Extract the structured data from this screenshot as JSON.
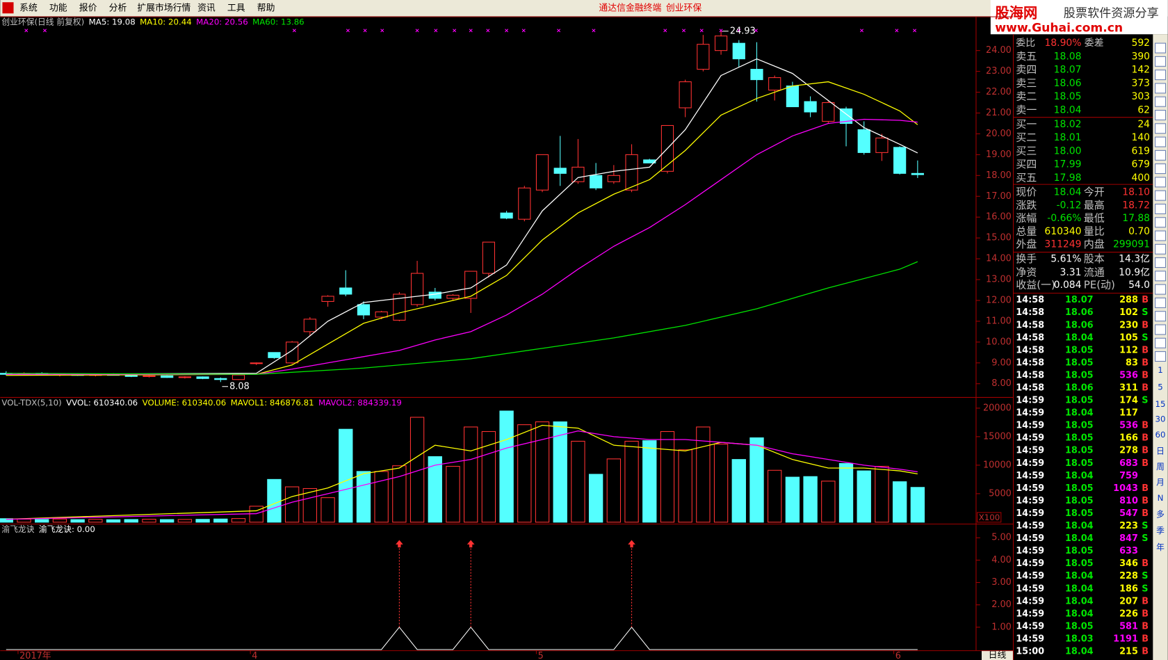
{
  "menu": [
    "系统",
    "功能",
    "报价",
    "分析",
    "扩展市场行情",
    "资讯",
    "工具",
    "帮助"
  ],
  "title_center": [
    "通达信金融终端",
    "创业环保"
  ],
  "logo": {
    "name": "股海网",
    "slogan": "股票软件资源分享",
    "url": "www.Guhai.com.cn"
  },
  "period": "日线",
  "chart_data": [
    {
      "type": "candlestick",
      "up_color": "#ff3232",
      "down_color": "#54ffff",
      "header": [
        {
          "text": "创业环保(日线 前复权)",
          "color": "#c0c0c0"
        },
        {
          "text": "MA5: 19.08",
          "color": "#ffffff"
        },
        {
          "text": "MA10: 20.44",
          "color": "#ffff00"
        },
        {
          "text": "MA20: 20.56",
          "color": "#ff00ff"
        },
        {
          "text": "MA60: 13.86",
          "color": "#00e600"
        }
      ],
      "candles": [
        [
          8.5,
          8.6,
          8.4,
          8.45
        ],
        [
          8.45,
          8.55,
          8.4,
          8.5
        ],
        [
          8.5,
          8.55,
          8.4,
          8.42
        ],
        [
          8.42,
          8.5,
          8.35,
          8.45
        ],
        [
          8.45,
          8.5,
          8.38,
          8.4
        ],
        [
          8.4,
          8.48,
          8.35,
          8.44
        ],
        [
          8.44,
          8.5,
          8.4,
          8.42
        ],
        [
          8.42,
          8.46,
          8.32,
          8.35
        ],
        [
          8.35,
          8.42,
          8.3,
          8.38
        ],
        [
          8.38,
          8.4,
          8.28,
          8.3
        ],
        [
          8.3,
          8.36,
          8.25,
          8.33
        ],
        [
          8.33,
          8.35,
          8.22,
          8.25
        ],
        [
          8.25,
          8.3,
          8.08,
          8.2
        ],
        [
          8.2,
          8.45,
          8.18,
          8.42
        ],
        [
          8.98,
          9.02,
          8.9,
          9.0
        ],
        [
          9.5,
          9.5,
          9.2,
          9.25
        ],
        [
          9.0,
          10.05,
          8.95,
          10.0
        ],
        [
          10.5,
          11.2,
          10.3,
          11.1
        ],
        [
          11.95,
          12.25,
          11.7,
          12.2
        ],
        [
          12.6,
          13.45,
          12.2,
          12.3
        ],
        [
          11.8,
          11.95,
          11.1,
          11.3
        ],
        [
          11.2,
          11.5,
          11.1,
          11.45
        ],
        [
          11.05,
          12.4,
          11.0,
          12.3
        ],
        [
          11.8,
          13.9,
          11.7,
          13.3
        ],
        [
          12.4,
          12.6,
          12.0,
          12.1
        ],
        [
          12.1,
          12.3,
          12.0,
          12.25
        ],
        [
          12.1,
          13.4,
          11.4,
          13.4
        ],
        [
          13.3,
          14.8,
          13.1,
          14.8
        ],
        [
          16.2,
          16.3,
          15.9,
          15.95
        ],
        [
          15.9,
          17.5,
          15.8,
          17.4
        ],
        [
          17.3,
          19.0,
          17.2,
          19.0
        ],
        [
          18.35,
          19.9,
          17.5,
          18.1
        ],
        [
          17.7,
          19.75,
          17.6,
          18.4
        ],
        [
          18.0,
          18.6,
          17.3,
          17.4
        ],
        [
          17.7,
          18.5,
          17.6,
          18.0
        ],
        [
          17.3,
          19.5,
          17.2,
          19.0
        ],
        [
          18.75,
          18.8,
          18.6,
          18.6
        ],
        [
          18.2,
          20.4,
          18.1,
          20.4
        ],
        [
          21.25,
          22.6,
          20.8,
          22.5
        ],
        [
          23.1,
          24.75,
          23.0,
          24.3
        ],
        [
          24.0,
          24.93,
          23.8,
          24.7
        ],
        [
          24.35,
          24.5,
          23.2,
          23.6
        ],
        [
          23.1,
          24.4,
          21.55,
          22.6
        ],
        [
          22.1,
          22.8,
          21.6,
          22.7
        ],
        [
          22.3,
          22.5,
          21.3,
          21.3
        ],
        [
          21.55,
          21.8,
          20.8,
          21.05
        ],
        [
          20.6,
          21.6,
          20.5,
          21.5
        ],
        [
          21.2,
          21.3,
          19.4,
          20.5
        ],
        [
          20.2,
          20.6,
          19.0,
          19.1
        ],
        [
          19.1,
          20.0,
          18.7,
          19.8
        ],
        [
          19.35,
          19.4,
          18.05,
          18.1
        ],
        [
          18.1,
          18.72,
          17.88,
          18.04
        ]
      ],
      "series": [
        {
          "color": "#ffffff",
          "x": [
            0,
            14,
            16,
            18,
            20,
            22,
            24,
            26,
            28,
            30,
            32,
            34,
            36,
            38,
            40,
            42,
            44,
            46,
            48,
            50,
            51
          ],
          "values": [
            8.45,
            8.5,
            9.6,
            11.0,
            11.9,
            12.1,
            12.3,
            12.6,
            13.7,
            16.3,
            17.9,
            18.2,
            18.4,
            20.2,
            22.8,
            23.6,
            22.9,
            21.6,
            20.3,
            19.5,
            19.08
          ]
        },
        {
          "color": "#ffff00",
          "x": [
            0,
            14,
            16,
            18,
            20,
            22,
            24,
            26,
            28,
            30,
            32,
            34,
            36,
            38,
            40,
            42,
            44,
            46,
            48,
            50,
            51
          ],
          "values": [
            8.4,
            8.45,
            8.9,
            9.9,
            10.9,
            11.4,
            11.8,
            12.2,
            13.2,
            14.9,
            16.2,
            17.1,
            17.8,
            19.2,
            20.9,
            21.7,
            22.3,
            22.5,
            21.9,
            21.1,
            20.44
          ]
        },
        {
          "color": "#ff00ff",
          "x": [
            0,
            14,
            16,
            18,
            20,
            22,
            24,
            26,
            28,
            30,
            32,
            34,
            36,
            38,
            40,
            42,
            44,
            46,
            48,
            50,
            51
          ],
          "values": [
            8.45,
            8.45,
            8.7,
            9.0,
            9.3,
            9.6,
            10.1,
            10.5,
            11.3,
            12.3,
            13.5,
            14.6,
            15.5,
            16.6,
            17.8,
            19.0,
            19.9,
            20.5,
            20.7,
            20.65,
            20.56
          ]
        },
        {
          "color": "#00e600",
          "x": [
            0,
            14,
            20,
            26,
            30,
            34,
            38,
            42,
            46,
            50,
            51
          ],
          "values": [
            8.5,
            8.45,
            8.75,
            9.2,
            9.7,
            10.2,
            10.8,
            11.6,
            12.6,
            13.5,
            13.86
          ]
        }
      ],
      "annotations": [
        {
          "index": 40,
          "value": 24.93
        },
        {
          "index": 12,
          "value": 8.08
        }
      ],
      "x_labels": [
        {
          "index": 1,
          "label": "2017年"
        },
        {
          "index": 14,
          "label": "4"
        },
        {
          "index": 30,
          "label": "5"
        },
        {
          "index": 50,
          "label": "6"
        }
      ],
      "ylim": [
        7.36,
        25.64
      ],
      "yticks": [
        {
          "value": 8,
          "label": "8.00"
        },
        {
          "value": 9,
          "label": "9.00"
        },
        {
          "value": 10,
          "label": "10.00"
        },
        {
          "value": 11,
          "label": "11.00"
        },
        {
          "value": 12,
          "label": "12.00"
        },
        {
          "value": 13,
          "label": "13.00"
        },
        {
          "value": 14,
          "label": "14.00"
        },
        {
          "value": 15,
          "label": "15.00"
        },
        {
          "value": 16,
          "label": "16.00"
        },
        {
          "value": 17,
          "label": "17.00"
        },
        {
          "value": 18,
          "label": "18.00"
        },
        {
          "value": 19,
          "label": "19.00"
        },
        {
          "value": 20,
          "label": "20.00"
        },
        {
          "value": 21,
          "label": "21.00"
        },
        {
          "value": 22,
          "label": "22.00"
        },
        {
          "value": 23,
          "label": "23.00"
        },
        {
          "value": 24,
          "label": "24.00"
        }
      ]
    },
    {
      "type": "bar",
      "header": [
        {
          "text": "VOL-TDX(5,10)",
          "color": "#c0c0c0"
        },
        {
          "text": "VVOL: 610340.06",
          "color": "#ffffff"
        },
        {
          "text": "VOLUME: 610340.06",
          "color": "#ffff00"
        },
        {
          "text": "MAVOL1: 846876.81",
          "color": "#ffff00"
        },
        {
          "text": "MAVOL2: 884339.19",
          "color": "#ff00ff"
        }
      ],
      "values": [
        620,
        540,
        480,
        560,
        450,
        500,
        430,
        470,
        520,
        460,
        480,
        500,
        560,
        640,
        2800,
        7500,
        6200,
        5900,
        4300,
        16300,
        8900,
        8900,
        9900,
        18400,
        11500,
        9800,
        16700,
        15900,
        19500,
        17100,
        17600,
        17600,
        14200,
        8400,
        11100,
        14200,
        14300,
        15900,
        12700,
        16700,
        13700,
        11000,
        14800,
        9100,
        7900,
        8000,
        7200,
        10300,
        9000,
        9800,
        7100,
        6103.4
      ],
      "series": [
        {
          "color": "#ffff00",
          "x": [
            0,
            14,
            16,
            18,
            20,
            22,
            24,
            26,
            28,
            30,
            32,
            34,
            36,
            38,
            40,
            42,
            44,
            46,
            48,
            50,
            51
          ],
          "values": [
            520,
            2000,
            4500,
            6000,
            8500,
            9500,
            13500,
            12500,
            14500,
            17000,
            16500,
            13500,
            13000,
            12500,
            14000,
            13500,
            11000,
            9500,
            9500,
            9000,
            8468.77
          ]
        },
        {
          "color": "#ff00ff",
          "x": [
            0,
            14,
            16,
            18,
            20,
            22,
            24,
            26,
            28,
            30,
            32,
            34,
            36,
            38,
            40,
            42,
            44,
            46,
            48,
            50,
            51
          ],
          "values": [
            500,
            1500,
            3500,
            5000,
            6500,
            8000,
            10000,
            11000,
            13000,
            14500,
            16000,
            15000,
            14500,
            14500,
            14000,
            13500,
            12000,
            11000,
            10000,
            9300,
            8843.39
          ]
        }
      ],
      "unit_label": "X100",
      "ylim": [
        0,
        21950
      ],
      "yticks": [
        5000,
        10000,
        15000,
        20000
      ]
    },
    {
      "type": "line",
      "color": "#ffffff",
      "arrow_color": "#ff3232",
      "header": [
        {
          "text": "渝飞龙诀",
          "color": "#c0c0c0"
        },
        {
          "text": "渝飞龙诀: 0.00",
          "color": "#ffffff"
        }
      ],
      "values": [
        0,
        0,
        0,
        0,
        0,
        0,
        0,
        0,
        0,
        0,
        0,
        0,
        0,
        0,
        0,
        0,
        0,
        0,
        0,
        0,
        0,
        0,
        1,
        0,
        0,
        0,
        1,
        0,
        0,
        0,
        0,
        0,
        0,
        0,
        0,
        1,
        0,
        0,
        0,
        0,
        0,
        0,
        0,
        0,
        0,
        0,
        0,
        0,
        0,
        0,
        0,
        0
      ],
      "arrows": [
        {
          "index": 22,
          "value": 4.7
        },
        {
          "index": 26,
          "value": 4.7
        },
        {
          "index": 35,
          "value": 4.7
        }
      ],
      "ylim": [
        0,
        5.63
      ],
      "yticks": [
        {
          "value": 1,
          "label": "1.00"
        },
        {
          "value": 2,
          "label": "2.00"
        },
        {
          "value": 3,
          "label": "3.00"
        },
        {
          "value": 4,
          "label": "4.00"
        },
        {
          "value": 5,
          "label": "5.00"
        }
      ]
    }
  ],
  "order_book": {
    "header": [
      "委比",
      "18.90%",
      "委差",
      "592"
    ],
    "price_color": "#00e600",
    "volume_color": "#ffff00",
    "rows": [
      [
        "卖五",
        "18.08",
        "390"
      ],
      [
        "卖四",
        "18.07",
        "142"
      ],
      [
        "卖三",
        "18.06",
        "373"
      ],
      [
        "卖二",
        "18.05",
        "303"
      ],
      [
        "卖一",
        "18.04",
        "62"
      ],
      [
        "买一",
        "18.02",
        "24"
      ],
      [
        "买二",
        "18.01",
        "140"
      ],
      [
        "买三",
        "18.00",
        "619"
      ],
      [
        "买四",
        "17.99",
        "679"
      ],
      [
        "买五",
        "17.98",
        "400"
      ]
    ]
  },
  "quote": {
    "rows": [
      [
        "现价",
        "18.04",
        "今开",
        "18.10"
      ],
      [
        "涨跌",
        "-0.12",
        "最高",
        "18.72"
      ],
      [
        "涨幅",
        "-0.66%",
        "最低",
        "17.88"
      ],
      [
        "总量",
        "610340",
        "量比",
        "0.70"
      ],
      [
        "外盘",
        "311249",
        "内盘",
        "299091"
      ],
      [
        "换手",
        "5.61%",
        "股本",
        "14.3亿"
      ],
      [
        "净资",
        "3.31",
        "流通",
        "10.9亿"
      ],
      [
        "收益(一)",
        "0.084",
        "PE(动)",
        "54.0"
      ]
    ],
    "value_colors": [
      [
        "#00e600",
        "#ff3232"
      ],
      [
        "#00e600",
        "#ff3232"
      ],
      [
        "#00e600",
        "#00e600"
      ],
      [
        "#ffff00",
        "#ffff00"
      ],
      [
        "#ff3232",
        "#00e600"
      ],
      [
        "#ffffff",
        "#ffffff"
      ],
      [
        "#ffffff",
        "#ffffff"
      ],
      [
        "#ffffff",
        "#ffffff"
      ]
    ]
  },
  "ticks": {
    "price_color": "#00e600",
    "side_colors": {
      "B": "#ff3232",
      "S": "#00e600"
    },
    "rows": [
      [
        "14:58",
        "18.07",
        "288",
        "B",
        "#ffff00"
      ],
      [
        "14:58",
        "18.06",
        "102",
        "S",
        "#ffff00"
      ],
      [
        "14:58",
        "18.06",
        "230",
        "B",
        "#ffff00"
      ],
      [
        "14:58",
        "18.04",
        "105",
        "S",
        "#ffff00"
      ],
      [
        "14:58",
        "18.05",
        "112",
        "B",
        "#ffff00"
      ],
      [
        "14:58",
        "18.05",
        "83",
        "B",
        "#ffff00"
      ],
      [
        "14:58",
        "18.05",
        "536",
        "B",
        "#ff00ff"
      ],
      [
        "14:58",
        "18.06",
        "311",
        "B",
        "#ffff00"
      ],
      [
        "14:59",
        "18.05",
        "174",
        "S",
        "#ffff00"
      ],
      [
        "14:59",
        "18.04",
        "117",
        null,
        "#ffff00"
      ],
      [
        "14:59",
        "18.05",
        "536",
        "B",
        "#ff00ff"
      ],
      [
        "14:59",
        "18.05",
        "166",
        "B",
        "#ffff00"
      ],
      [
        "14:59",
        "18.05",
        "278",
        "B",
        "#ffff00"
      ],
      [
        "14:59",
        "18.05",
        "683",
        "B",
        "#ff00ff"
      ],
      [
        "14:59",
        "18.04",
        "759",
        null,
        "#ff00ff"
      ],
      [
        "14:59",
        "18.05",
        "1043",
        "B",
        "#ff00ff"
      ],
      [
        "14:59",
        "18.05",
        "810",
        "B",
        "#ff00ff"
      ],
      [
        "14:59",
        "18.05",
        "547",
        "B",
        "#ff00ff"
      ],
      [
        "14:59",
        "18.04",
        "223",
        "S",
        "#ffff00"
      ],
      [
        "14:59",
        "18.04",
        "847",
        "S",
        "#ff00ff"
      ],
      [
        "14:59",
        "18.05",
        "633",
        null,
        "#ff00ff"
      ],
      [
        "14:59",
        "18.05",
        "346",
        "B",
        "#ffff00"
      ],
      [
        "14:59",
        "18.04",
        "228",
        "S",
        "#ffff00"
      ],
      [
        "14:59",
        "18.04",
        "186",
        "S",
        "#ffff00"
      ],
      [
        "14:59",
        "18.04",
        "207",
        "B",
        "#ffff00"
      ],
      [
        "14:59",
        "18.04",
        "226",
        "B",
        "#ffff00"
      ],
      [
        "14:59",
        "18.05",
        "581",
        "B",
        "#ff00ff"
      ],
      [
        "14:59",
        "18.03",
        "1191",
        "B",
        "#ff00ff"
      ],
      [
        "15:00",
        "18.04",
        "215",
        "B",
        "#ffff00"
      ]
    ]
  },
  "sidebar": [
    "1",
    "5",
    "15",
    "30",
    "60",
    "日",
    "周",
    "月",
    "N",
    "多",
    "季",
    "年"
  ]
}
